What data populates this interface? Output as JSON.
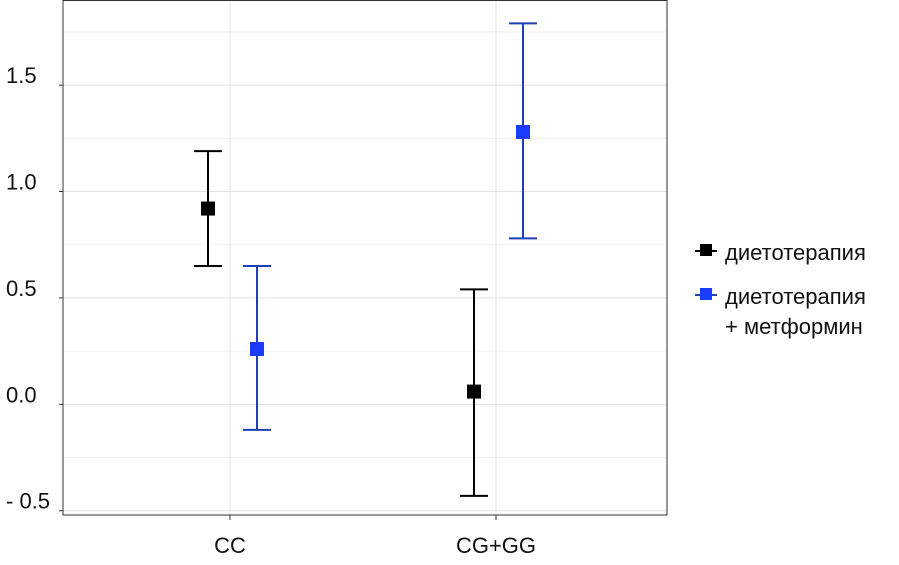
{
  "chart_data": {
    "type": "errorbar",
    "categories": [
      "CC",
      "CG+GG"
    ],
    "ylim": [
      -0.52,
      1.9
    ],
    "yticks": [
      -0.5,
      0.0,
      0.5,
      1.0,
      1.5
    ],
    "ytick_labels": [
      "- 0.5",
      "0.0",
      "0.5",
      "1.0",
      "1.5"
    ],
    "grid": true,
    "legend_position": "right",
    "series": [
      {
        "name": "диетотерапия",
        "color": "#000000",
        "points": [
          {
            "category": "CC",
            "value": 0.92,
            "lower": 0.65,
            "upper": 1.19
          },
          {
            "category": "CG+GG",
            "value": 0.06,
            "lower": -0.43,
            "upper": 0.54
          }
        ]
      },
      {
        "name": "диетотерапия + метформин",
        "name_lines": [
          "диетотерапия",
          "+ метформин"
        ],
        "color": "#1a3cff",
        "line_color": "#1e3fb5",
        "points": [
          {
            "category": "CC",
            "value": 0.26,
            "lower": -0.12,
            "upper": 0.65
          },
          {
            "category": "CG+GG",
            "value": 1.28,
            "lower": 0.78,
            "upper": 1.79
          }
        ]
      }
    ]
  }
}
